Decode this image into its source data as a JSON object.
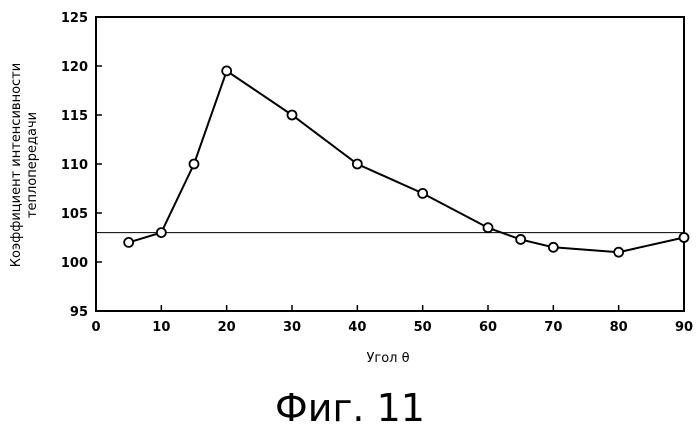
{
  "chart_data": {
    "type": "line",
    "x": [
      5,
      10,
      15,
      20,
      30,
      40,
      50,
      60,
      65,
      70,
      80,
      90
    ],
    "series": [
      {
        "values": [
          102,
          103,
          110,
          119.5,
          115,
          110,
          107,
          103.5,
          102.3,
          101.5,
          101,
          102.5
        ]
      }
    ],
    "reference_line": 103,
    "xlabel": "Угол θ",
    "ylabel_lines": [
      "Коэффициент интенсивности",
      "теплопередачи"
    ],
    "xlim": [
      0,
      90
    ],
    "ylim": [
      95,
      125
    ],
    "xticks": [
      0,
      10,
      20,
      30,
      40,
      50,
      60,
      70,
      80,
      90
    ],
    "yticks": [
      95,
      100,
      105,
      110,
      115,
      120,
      125
    ],
    "grid": false,
    "marker": "open-circle"
  },
  "caption": "Фиг. 11"
}
